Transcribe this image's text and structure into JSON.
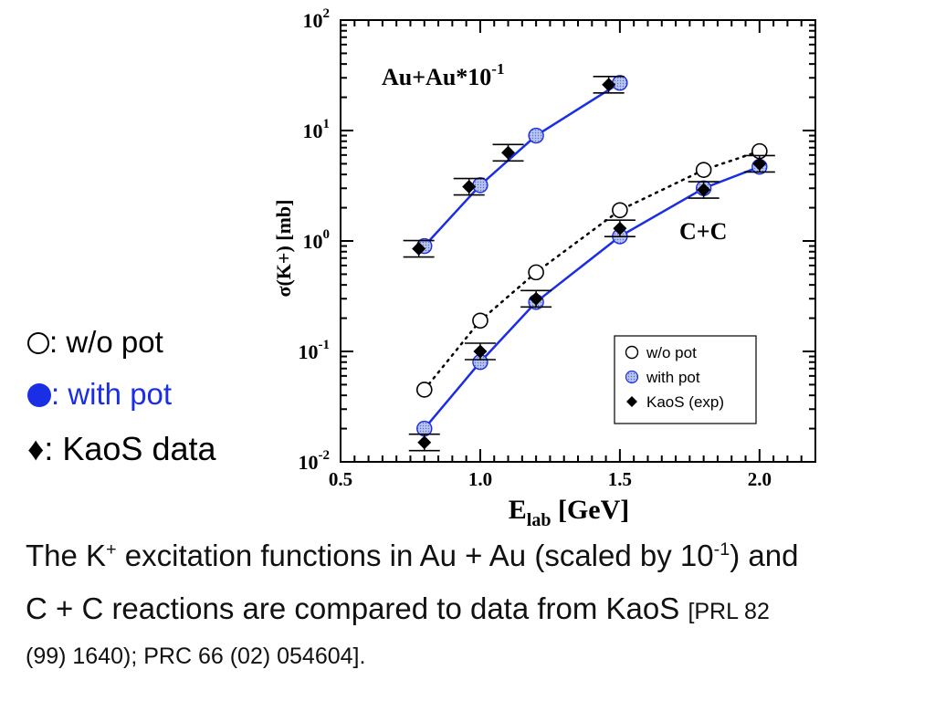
{
  "chart_data": {
    "type": "line",
    "xlabel_main": "E",
    "xlabel_sub": "lab",
    "xlabel_unit": "[GeV]",
    "ylabel": "σ(K+) [mb]",
    "xlim": [
      0.5,
      2.2
    ],
    "ylim": [
      0.01,
      100
    ],
    "yscale": "log",
    "x_ticks": [
      "0.5",
      "1.0",
      "1.5",
      "2.0"
    ],
    "x_tick_values": [
      0.5,
      1.0,
      1.5,
      2.0
    ],
    "y_ticks": [
      {
        "base": "10",
        "exp": "2",
        "value": 100
      },
      {
        "base": "10",
        "exp": "1",
        "value": 10
      },
      {
        "base": "10",
        "exp": "0",
        "value": 1
      },
      {
        "base": "10",
        "exp": "-1",
        "value": 0.1
      },
      {
        "base": "10",
        "exp": "-2",
        "value": 0.01
      }
    ],
    "annotations": {
      "auau": {
        "base": "Au+Au*10",
        "exp": "-1"
      },
      "cc": "C+C"
    },
    "inner_legend": [
      "w/o pot",
      "with pot",
      "KaoS (exp)"
    ],
    "series": [
      {
        "name": "with pot",
        "group": "Au+Au",
        "style": "filled-circle",
        "line": "solid",
        "x": [
          0.8,
          1.0,
          1.2,
          1.5
        ],
        "y": [
          0.9,
          3.2,
          9.0,
          27
        ]
      },
      {
        "name": "KaoS (exp)",
        "group": "Au+Au",
        "style": "diamond",
        "errorbars": true,
        "x": [
          0.78,
          0.96,
          1.1,
          1.46
        ],
        "y": [
          0.85,
          3.1,
          6.3,
          26
        ]
      },
      {
        "name": "w/o pot",
        "group": "C+C",
        "style": "open-circle",
        "line": "dotted",
        "x": [
          0.8,
          1.0,
          1.2,
          1.5,
          1.8,
          2.0
        ],
        "y": [
          0.045,
          0.19,
          0.52,
          1.9,
          4.4,
          6.5
        ]
      },
      {
        "name": "with pot",
        "group": "C+C",
        "style": "filled-circle",
        "line": "solid",
        "x": [
          0.8,
          1.0,
          1.2,
          1.5,
          1.8,
          2.0
        ],
        "y": [
          0.02,
          0.08,
          0.28,
          1.1,
          3.0,
          4.7
        ]
      },
      {
        "name": "KaoS (exp)",
        "group": "C+C",
        "style": "diamond",
        "errorbars": true,
        "x": [
          0.8,
          1.0,
          1.2,
          1.5,
          1.8,
          2.0
        ],
        "y": [
          0.015,
          0.1,
          0.3,
          1.3,
          2.9,
          5.0
        ]
      }
    ]
  },
  "side_legend": {
    "wo_pot": ": w/o pot",
    "with_pot": ": with pot",
    "kaos_symbol": "♦",
    "kaos": ": KaoS data"
  },
  "caption": {
    "l1_a": "The K",
    "l1_sup1": "+",
    "l1_b": " excitation functions in Au + Au (scaled by 10",
    "l1_sup2": "-1",
    "l1_c": ") and",
    "l2_a": "C + C reactions are compared to data from KaoS ",
    "l2_ref": "[PRL 82",
    "l3": "(99) 1640); PRC 66 (02) 054604]."
  },
  "colors": {
    "with_pot": "#1a2ee6",
    "with_pot_fill": "#b8c4ee",
    "axis": "#000000"
  }
}
